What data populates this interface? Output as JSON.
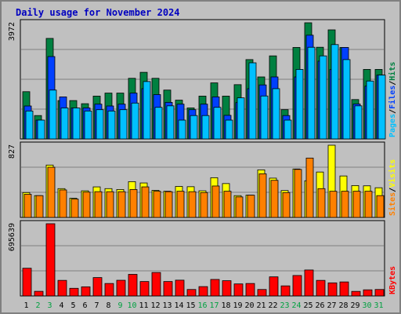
{
  "chart_data": {
    "type": "bar",
    "title": "Daily usage for November 2024",
    "categories": [
      "1",
      "2",
      "3",
      "4",
      "5",
      "6",
      "7",
      "8",
      "9",
      "10",
      "11",
      "12",
      "13",
      "14",
      "15",
      "16",
      "17",
      "18",
      "19",
      "20",
      "21",
      "22",
      "23",
      "24",
      "25",
      "26",
      "27",
      "28",
      "29",
      "30",
      "31"
    ],
    "weekend_days": [
      "2",
      "3",
      "9",
      "10",
      "16",
      "17",
      "23",
      "24",
      "30",
      "31"
    ],
    "panels": [
      {
        "name": "hits-files-pages",
        "max_label": "3972",
        "ylim": [
          0,
          3972
        ],
        "legend": [
          {
            "text": "Pages",
            "color": "#00c0ff"
          },
          {
            "text": "Files",
            "color": "#0040ff"
          },
          {
            "text": "Hits",
            "color": "#008040"
          }
        ],
        "series": [
          {
            "name": "Hits",
            "color": "#008040",
            "values": [
              1616,
              800,
              3437,
              1312,
              1312,
              1205,
              1465,
              1568,
              1568,
              2073,
              2278,
              2073,
              1671,
              1326,
              1060,
              1465,
              1917,
              1465,
              1856,
              2713,
              2120,
              2840,
              1001,
              3128,
              3972,
              3135,
              3730,
              3128,
              1347,
              2377,
              2377
            ]
          },
          {
            "name": "Files",
            "color": "#0040ff",
            "values": [
              1127,
              644,
              2817,
              1437,
              1060,
              1060,
              1190,
              1127,
              1190,
              1568,
              1719,
              1516,
              1251,
              1190,
              1001,
              1190,
              1437,
              807,
              1242,
              1719,
              1847,
              2120,
              800,
              2120,
              3547,
              2660,
              2370,
              3128,
              1194,
              1805,
              2183
            ]
          },
          {
            "name": "Pages",
            "color": "#00c0ff",
            "values": [
              956,
              644,
              1671,
              1060,
              1060,
              956,
              1001,
              956,
              1001,
              1227,
              1963,
              1081,
              1132,
              644,
              800,
              800,
              1081,
              644,
              1405,
              2603,
              1469,
              1719,
              644,
              2377,
              3135,
              2840,
              3226,
              2713,
              1132,
              1980,
              2183
            ]
          }
        ]
      },
      {
        "name": "visits-sites",
        "max_label": "827",
        "ylim": [
          0,
          827
        ],
        "legend": [
          {
            "text": "Sites",
            "color": "#ff8000"
          },
          {
            "text": "Visits",
            "color": "#ffff00"
          }
        ],
        "series": [
          {
            "name": "Visits",
            "color": "#ffff00",
            "values": [
              285,
              250,
              600,
              330,
              220,
              305,
              350,
              330,
              320,
              410,
              395,
              310,
              300,
              355,
              352,
              305,
              455,
              388,
              250,
              255,
              545,
              450,
              308,
              555,
              420,
              520,
              827,
              475,
              365,
              362,
              340
            ]
          },
          {
            "name": "Sites",
            "color": "#ff8000",
            "values": [
              265,
              250,
              575,
              315,
              210,
              290,
              295,
              295,
              295,
              320,
              350,
              300,
              295,
              300,
              295,
              285,
              360,
              300,
              235,
              255,
              500,
              425,
              285,
              550,
              680,
              330,
              300,
              300,
              300,
              300,
              250
            ]
          }
        ]
      },
      {
        "name": "kbytes",
        "max_label": "695639",
        "ylim": [
          0,
          695639
        ],
        "legend": [
          {
            "text": "KBytes",
            "color": "#ff0000"
          }
        ],
        "series": [
          {
            "name": "KBytes",
            "color": "#ff0000",
            "values": [
              267000,
              44500,
              695639,
              150000,
              73600,
              88000,
              177000,
              120000,
              151000,
              208000,
              139000,
              226000,
              139000,
              152000,
              62300,
              90000,
              159000,
              147000,
              116000,
              120000,
              62300,
              184000,
              97000,
              197000,
              250000,
              150000,
              126000,
              135000,
              44000,
              59000,
              62300
            ]
          }
        ]
      }
    ]
  }
}
